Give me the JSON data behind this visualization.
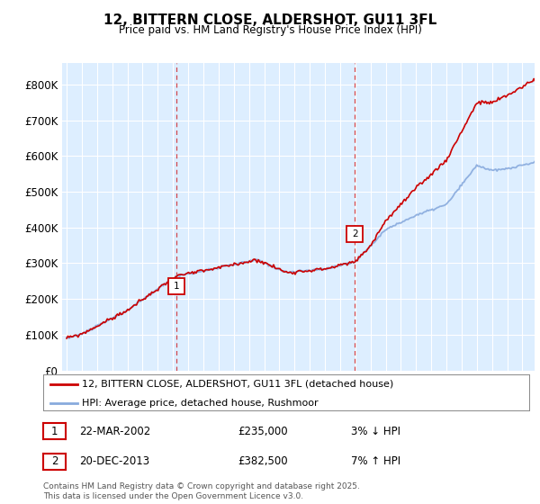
{
  "title_line1": "12, BITTERN CLOSE, ALDERSHOT, GU11 3FL",
  "title_line2": "Price paid vs. HM Land Registry's House Price Index (HPI)",
  "ylabel_ticks": [
    "£0",
    "£100K",
    "£200K",
    "£300K",
    "£400K",
    "£500K",
    "£600K",
    "£700K",
    "£800K"
  ],
  "ytick_values": [
    0,
    100000,
    200000,
    300000,
    400000,
    500000,
    600000,
    700000,
    800000
  ],
  "ylim": [
    0,
    860000
  ],
  "xlim_start": 1994.7,
  "xlim_end": 2025.8,
  "purchase1_x": 2002.22,
  "purchase1_price": 235000,
  "purchase1_label": "1",
  "purchase2_x": 2013.97,
  "purchase2_price": 382500,
  "purchase2_label": "2",
  "legend_property": "12, BITTERN CLOSE, ALDERSHOT, GU11 3FL (detached house)",
  "legend_hpi": "HPI: Average price, detached house, Rushmoor",
  "note1_num": "1",
  "note1_date": "22-MAR-2002",
  "note1_price": "£235,000",
  "note1_pct": "3% ↓ HPI",
  "note2_num": "2",
  "note2_date": "20-DEC-2013",
  "note2_price": "£382,500",
  "note2_pct": "7% ↑ HPI",
  "footer": "Contains HM Land Registry data © Crown copyright and database right 2025.\nThis data is licensed under the Open Government Licence v3.0.",
  "line_color_property": "#cc0000",
  "line_color_hpi": "#88aadd",
  "bg_color": "#ddeeff",
  "grid_color": "#ffffff",
  "vline_color": "#cc0000"
}
